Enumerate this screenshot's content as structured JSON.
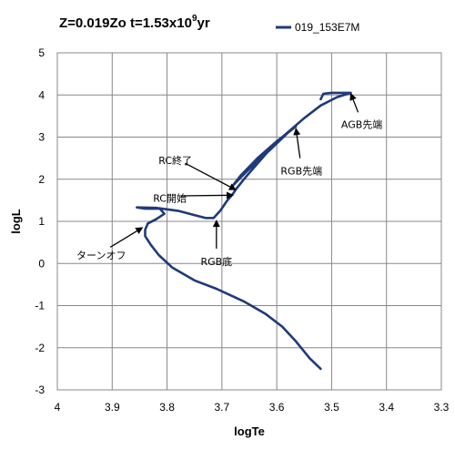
{
  "chart_data": {
    "type": "line",
    "title": {
      "main": "Z=0.019Zo t=1.53x10",
      "sup": "9",
      "tail": "yr"
    },
    "xlabel": "logTe",
    "ylabel": "logL",
    "xlim": [
      4.0,
      3.3
    ],
    "ylim": [
      -3,
      5
    ],
    "x_reversed": true,
    "grid": true,
    "x_ticks": [
      "4",
      "3.9",
      "3.8",
      "3.7",
      "3.6",
      "3.5",
      "3.4",
      "3.3"
    ],
    "y_ticks": [
      "5",
      "4",
      "3",
      "2",
      "1",
      "0",
      "-1",
      "-2",
      "-3"
    ],
    "legend_position": "top-right",
    "series": [
      {
        "name": "019_153E7M",
        "color": "#1f3a78",
        "points": [
          [
            3.52,
            -2.5
          ],
          [
            3.54,
            -2.25
          ],
          [
            3.565,
            -1.85
          ],
          [
            3.59,
            -1.5
          ],
          [
            3.62,
            -1.2
          ],
          [
            3.66,
            -0.9
          ],
          [
            3.71,
            -0.6
          ],
          [
            3.75,
            -0.4
          ],
          [
            3.79,
            -0.1
          ],
          [
            3.815,
            0.2
          ],
          [
            3.83,
            0.45
          ],
          [
            3.84,
            0.65
          ],
          [
            3.84,
            0.8
          ],
          [
            3.835,
            0.95
          ],
          [
            3.82,
            1.05
          ],
          [
            3.805,
            1.18
          ],
          [
            3.813,
            1.3
          ],
          [
            3.84,
            1.3
          ],
          [
            3.855,
            1.33
          ],
          [
            3.82,
            1.32
          ],
          [
            3.78,
            1.25
          ],
          [
            3.75,
            1.15
          ],
          [
            3.73,
            1.08
          ],
          [
            3.715,
            1.08
          ],
          [
            3.703,
            1.25
          ],
          [
            3.69,
            1.5
          ],
          [
            3.68,
            1.65
          ],
          [
            3.675,
            1.75
          ],
          [
            3.66,
            2.0
          ],
          [
            3.64,
            2.3
          ],
          [
            3.62,
            2.6
          ],
          [
            3.6,
            2.85
          ],
          [
            3.58,
            3.1
          ],
          [
            3.565,
            3.25
          ],
          [
            3.6,
            2.9
          ],
          [
            3.635,
            2.5
          ],
          [
            3.665,
            2.1
          ],
          [
            3.68,
            1.85
          ],
          [
            3.665,
            2.05
          ],
          [
            3.63,
            2.5
          ],
          [
            3.59,
            3.0
          ],
          [
            3.55,
            3.45
          ],
          [
            3.52,
            3.75
          ],
          [
            3.49,
            3.95
          ],
          [
            3.465,
            4.05
          ],
          [
            3.5,
            4.05
          ],
          [
            3.515,
            4.03
          ],
          [
            3.52,
            3.9
          ]
        ]
      }
    ],
    "annotations": [
      {
        "text": "AGB先端",
        "target": [
          3.465,
          4.03
        ],
        "label_at": [
          3.445,
          3.3
        ]
      },
      {
        "text": "RGB先端",
        "target": [
          3.565,
          3.2
        ],
        "label_at": [
          3.555,
          2.2
        ]
      },
      {
        "text": "RC終了",
        "target": [
          3.675,
          1.75
        ],
        "label_at": [
          3.785,
          2.45
        ]
      },
      {
        "text": "RC開始",
        "target": [
          3.68,
          1.62
        ],
        "label_at": [
          3.795,
          1.55
        ]
      },
      {
        "text": "RGB底",
        "target": [
          3.71,
          1.02
        ],
        "label_at": [
          3.71,
          0.05
        ]
      },
      {
        "text": "ターンオフ",
        "target": [
          3.845,
          0.85
        ],
        "label_at": [
          3.92,
          0.2
        ]
      }
    ]
  }
}
